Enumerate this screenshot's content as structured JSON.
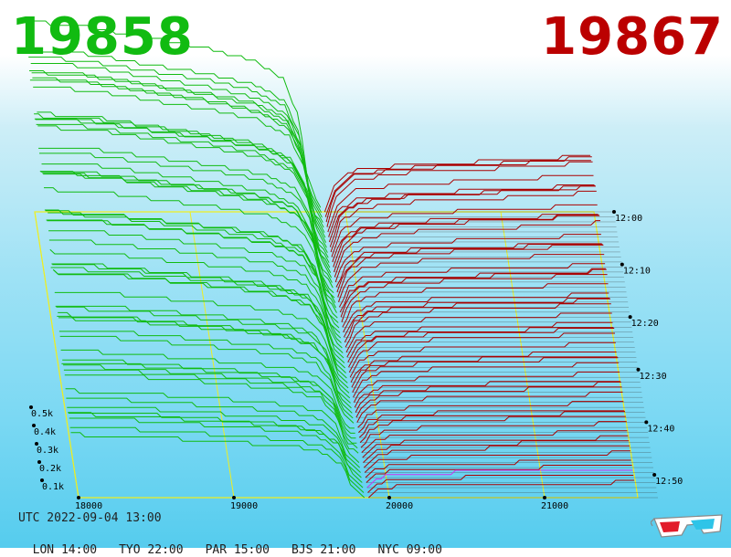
{
  "header": {
    "bid_price": "19858",
    "ask_price": "19867",
    "bid_color": "#11bb11",
    "ask_color": "#bb0000"
  },
  "footer": {
    "utc": "UTC 2022-09-04 13:00",
    "zones": [
      "LON 14:00",
      "TYO 22:00",
      "PAR 15:00",
      "BJS 21:00",
      "NYC 09:00"
    ]
  },
  "chart_data": {
    "type": "area",
    "x_ticks": [
      "18000",
      "19000",
      "20000",
      "21000"
    ],
    "y_ticks": [
      "0.1k",
      "0.2k",
      "0.3k",
      "0.4k",
      "0.5k"
    ],
    "time_ticks": [
      "12:00",
      "12:10",
      "12:20",
      "12:30",
      "12:40",
      "12:50"
    ],
    "bid_series_color": "#11bb11",
    "ask_series_color": "#aa0000",
    "grid": true,
    "bid_profile": [
      [
        17950,
        0.5
      ],
      [
        18300,
        0.49
      ],
      [
        18700,
        0.46
      ],
      [
        19100,
        0.43
      ],
      [
        19400,
        0.4
      ],
      [
        19600,
        0.35
      ],
      [
        19700,
        0.25
      ],
      [
        19760,
        0.08
      ],
      [
        19858,
        0.0
      ]
    ],
    "ask_profile": [
      [
        19867,
        0.0
      ],
      [
        19930,
        0.09
      ],
      [
        20050,
        0.13
      ],
      [
        20400,
        0.15
      ],
      [
        20900,
        0.16
      ],
      [
        21300,
        0.17
      ],
      [
        21600,
        0.18
      ]
    ]
  },
  "icons": {
    "glasses": "3d-glasses-icon"
  }
}
